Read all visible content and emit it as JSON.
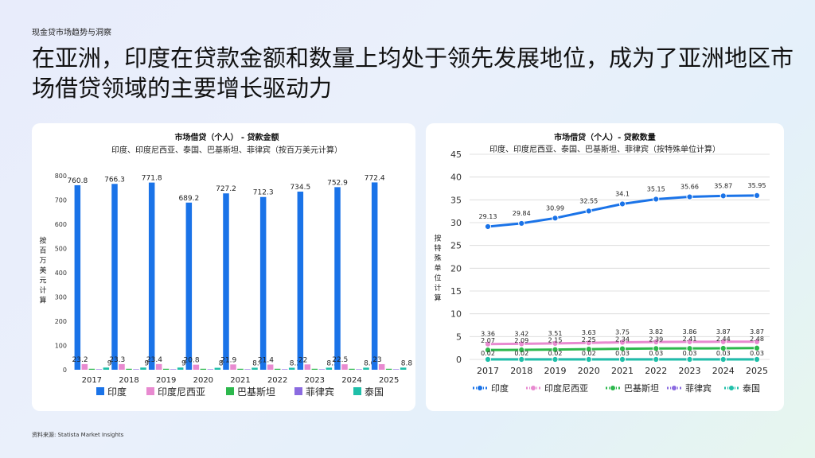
{
  "header": {
    "kicker": "现金贷市场趋势与洞察",
    "title": "在亚洲，印度在贷款金额和数量上均处于领先发展地位，成为了亚洲地区市场借贷领域的主要增长驱动力"
  },
  "footer": {
    "source": "资料来源: Statista Market Insights"
  },
  "colors": {
    "india": "#1a73e8",
    "indonesia": "#e88ad0",
    "pakistan": "#2db84d",
    "philippines": "#8b6be0",
    "thailand": "#1fbfa9"
  },
  "chart_data": [
    {
      "type": "bar",
      "title": "市场借贷（个人） - 贷款金额",
      "subtitle": "印度、印度尼西亚、泰国、巴基斯坦、菲律宾（按百万美元计算）",
      "ylabel": "按百万美元计算",
      "xlabel": "",
      "ylim": [
        0,
        800
      ],
      "yticks": [
        0,
        100,
        200,
        300,
        400,
        500,
        600,
        700,
        800
      ],
      "grid": false,
      "legend": "bottom",
      "categories": [
        "2017",
        "2018",
        "2019",
        "2020",
        "2021",
        "2022",
        "2023",
        "2024",
        "2025"
      ],
      "series": [
        {
          "name": "印度",
          "color": "#1a73e8",
          "values": [
            760.8,
            766.3,
            771.8,
            689.2,
            727.2,
            712.3,
            734.5,
            752.9,
            772.4
          ],
          "labels": [
            "760.8",
            "766.3",
            "771.8",
            "689.2",
            "727.2",
            "712.3",
            "734.5",
            "752.9",
            "772.4"
          ]
        },
        {
          "name": "印度尼西亚",
          "color": "#e88ad0",
          "values": [
            23.2,
            23.3,
            23.4,
            20.8,
            21.9,
            21.4,
            22,
            22.5,
            23
          ],
          "labels": [
            "23.2",
            "23.3",
            "23.4",
            "20.8",
            "21.9",
            "21.4",
            "22",
            "22.5",
            "23"
          ]
        },
        {
          "name": "巴基斯坦",
          "color": "#2db84d",
          "values": [
            4,
            4,
            4,
            4,
            4,
            4,
            4,
            4,
            4
          ],
          "labels": []
        },
        {
          "name": "菲律宾",
          "color": "#8b6be0",
          "values": [
            2,
            2,
            2,
            2,
            2,
            2,
            2,
            2,
            2
          ],
          "labels": []
        },
        {
          "name": "泰国",
          "color": "#1fbfa9",
          "values": [
            9,
            9,
            9,
            8,
            8.4,
            8.2,
            8.5,
            8.6,
            8.8
          ],
          "labels": [
            "9",
            "9",
            "9",
            "8",
            "8.4",
            "8.2",
            "8.5",
            "8.6",
            "8.8"
          ]
        }
      ]
    },
    {
      "type": "line",
      "title": "市场借贷（个人）- 贷款数量",
      "subtitle": "印度、印度尼西亚、泰国、巴基斯坦、菲律宾（按特殊单位计算）",
      "ylabel": "按特殊单位计算",
      "xlabel": "",
      "ylim": [
        0,
        45
      ],
      "yticks": [
        0,
        5,
        10,
        15,
        20,
        25,
        30,
        35,
        40,
        45
      ],
      "grid": true,
      "legend": "bottom",
      "categories": [
        "2017",
        "2018",
        "2019",
        "2020",
        "2021",
        "2022",
        "2023",
        "2024",
        "2025"
      ],
      "series": [
        {
          "name": "印度",
          "color": "#1a73e8",
          "values": [
            29.13,
            29.84,
            30.99,
            32.55,
            34.1,
            35.15,
            35.66,
            35.87,
            35.95
          ],
          "labels": [
            "29.13",
            "29.84",
            "30.99",
            "32.55",
            "34.1",
            "35.15",
            "35.66",
            "35.87",
            "35.95"
          ]
        },
        {
          "name": "印度尼西亚",
          "color": "#e88ad0",
          "values": [
            3.36,
            3.42,
            3.51,
            3.63,
            3.75,
            3.82,
            3.86,
            3.87,
            3.87
          ],
          "labels": [
            "3.36",
            "3.42",
            "3.51",
            "3.63",
            "3.75",
            "3.82",
            "3.86",
            "3.87",
            "3.87"
          ]
        },
        {
          "name": "巴基斯坦",
          "color": "#2db84d",
          "values": [
            2.07,
            2.09,
            2.15,
            2.25,
            2.34,
            2.39,
            2.41,
            2.44,
            2.48
          ],
          "labels": [
            "2.07",
            "2.09",
            "2.15",
            "2.25",
            "2.34",
            "2.39",
            "2.41",
            "2.44",
            "2.48"
          ]
        },
        {
          "name": "菲律宾",
          "color": "#8b6be0",
          "values": [
            0.02,
            0.02,
            0.02,
            0.02,
            0.03,
            0.03,
            0.03,
            0.03,
            0.03
          ],
          "labels": [
            "0.02",
            "0.02",
            "0.02",
            "0.02",
            "0.03",
            "0.03",
            "0.03",
            "0.03",
            "0.03"
          ]
        },
        {
          "name": "泰国",
          "color": "#1fbfa9",
          "values": [
            0,
            0,
            0,
            0,
            0,
            0,
            0,
            0,
            0
          ],
          "labels": []
        }
      ]
    }
  ]
}
